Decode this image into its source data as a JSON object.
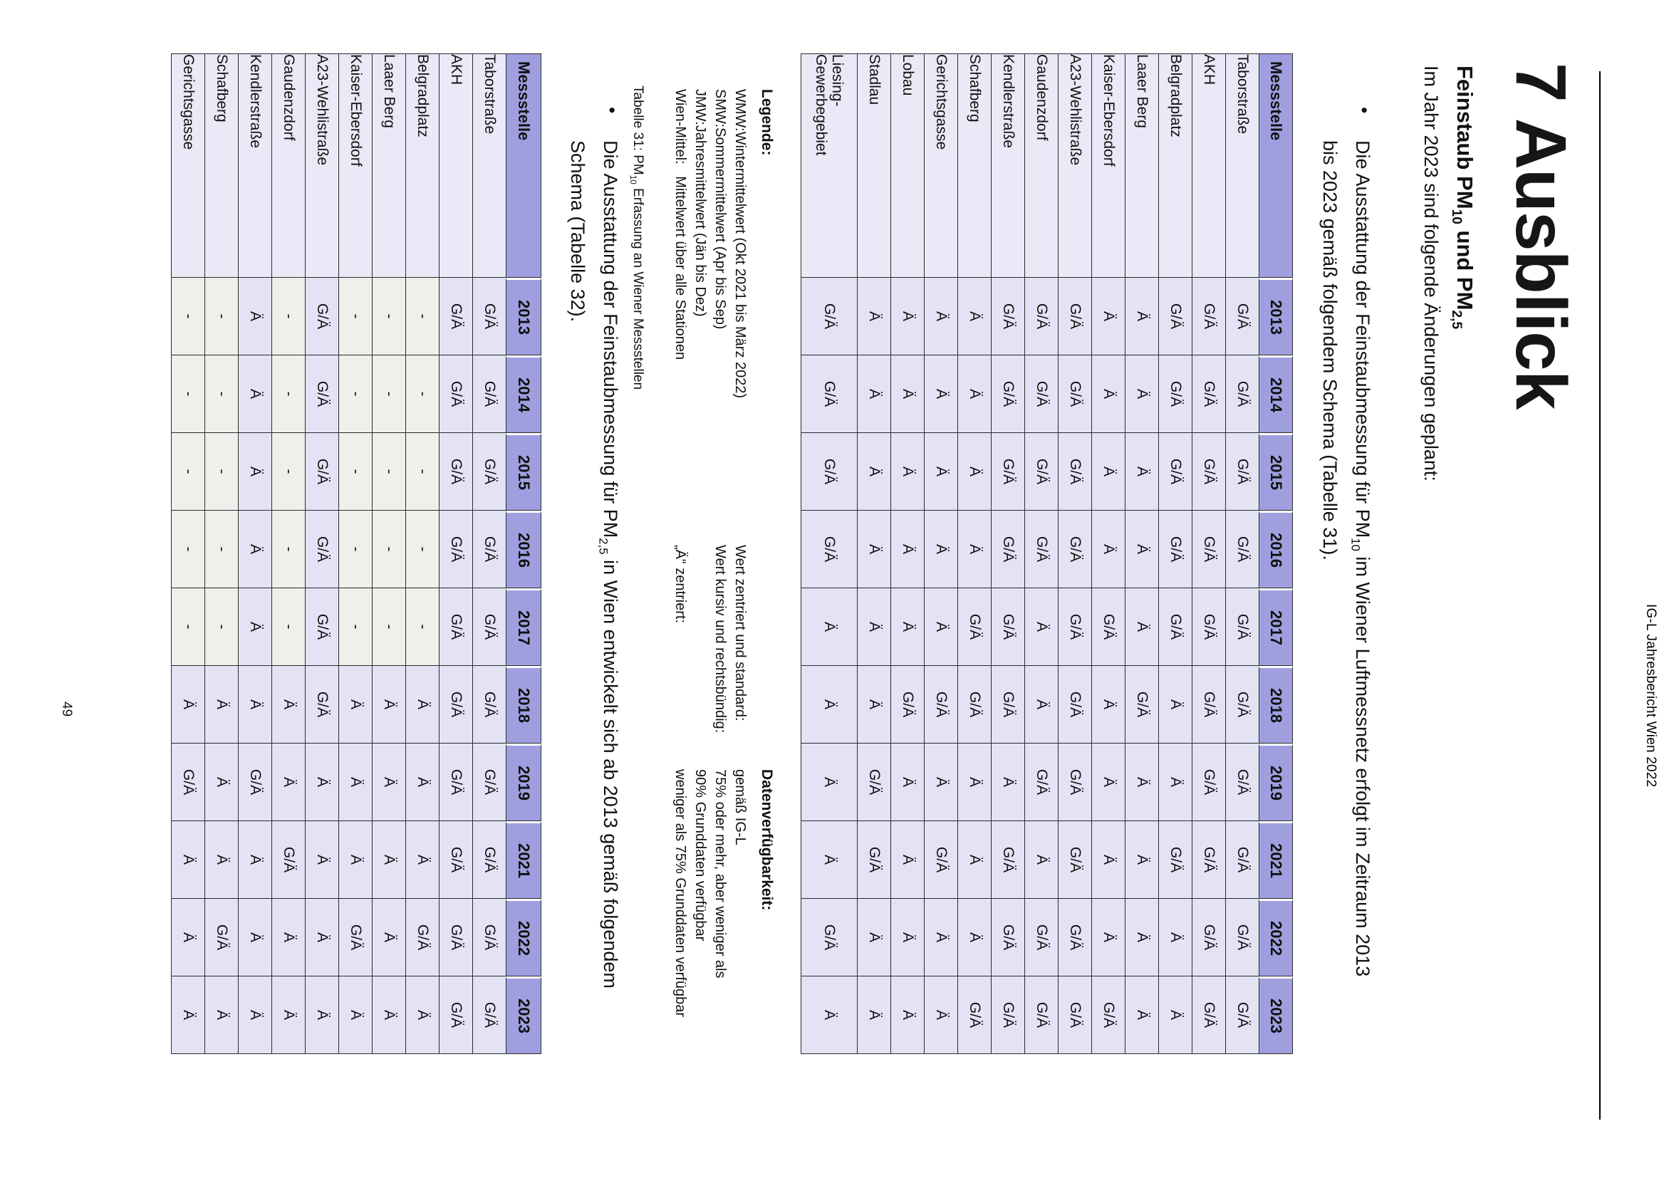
{
  "document": {
    "running_header": "IG-L Jahresbericht Wien 2022",
    "page_number": "49",
    "title": "7 Ausblick",
    "subtitle": {
      "pre": "Feinstaub PM",
      "sub1": "10",
      "mid": " und PM",
      "sub2": "2,5"
    },
    "intro": "Im Jahr 2023 sind folgende Änderungen geplant:",
    "bullet_marker": "•",
    "bullet1": {
      "pre": "Die Ausstattung der Feinstaubmessung für PM",
      "sub": "10",
      "post": " im Wiener Luftmessnetz erfolgt im Zeitraum 2013",
      "line2": "bis 2023 gemäß folgendem Schema (Tabelle 31)."
    },
    "caption31": {
      "pre": "Tabelle 31: PM",
      "sub": "10",
      "post": " Erfassung an Wiener Messstellen"
    },
    "bullet2": {
      "pre": "Die Ausstattung der Feinstaubmessung für PM",
      "sub": "2,5",
      "post": " in Wien entwickelt sich ab 2013 gemäß folgendem",
      "line2": "Schema (Tabelle 32)."
    }
  },
  "legend": {
    "heading_left": "Legende:",
    "heading_right": "Datenverfügbarkeit:",
    "rows": [
      {
        "left": "WMW:Wintermittelwert (Okt 2021 bis März 2022)",
        "mid": "Wert zentriert und standard:",
        "right": "gemäß IG-L"
      },
      {
        "left": "SMW:Sommermittelwert (Apr bis Sep)",
        "mid": "Wert kursiv und rechtsbündig:",
        "right": "75% oder mehr, aber weniger als"
      },
      {
        "left": "JMW:Jahresmittelwert (Jän bis Dez)",
        "mid": "",
        "right": "90% Grunddaten verfügbar"
      },
      {
        "left": "Wien-Mittel:   Mittelwert über alle Stationen",
        "mid": "„Ä“ zentriert:",
        "right": "weniger als 75% Grunddaten verfügbar"
      }
    ]
  },
  "tables": {
    "column_header": "Messstelle",
    "years": [
      "2013",
      "2014",
      "2015",
      "2016",
      "2017",
      "2018",
      "2019",
      "2021",
      "2022",
      "2023"
    ],
    "pm10": {
      "rows": [
        {
          "name": "Taborstraße",
          "values": [
            "G/Ä",
            "G/Ä",
            "G/Ä",
            "G/Ä",
            "G/Ä",
            "G/Ä",
            "G/Ä",
            "G/Ä",
            "G/Ä",
            "G/Ä"
          ]
        },
        {
          "name": "AKH",
          "values": [
            "G/Ä",
            "G/Ä",
            "G/Ä",
            "G/Ä",
            "G/Ä",
            "G/Ä",
            "G/Ä",
            "G/Ä",
            "G/Ä",
            "G/Ä"
          ]
        },
        {
          "name": "Belgradplatz",
          "values": [
            "G/Ä",
            "G/Ä",
            "G/Ä",
            "G/Ä",
            "G/Ä",
            "Ä",
            "Ä",
            "G/Ä",
            "Ä",
            "Ä"
          ]
        },
        {
          "name": "Laaer Berg",
          "values": [
            "Ä",
            "Ä",
            "Ä",
            "Ä",
            "Ä",
            "G/Ä",
            "Ä",
            "Ä",
            "Ä",
            "Ä"
          ]
        },
        {
          "name": "Kaiser-Ebersdorf",
          "values": [
            "Ä",
            "Ä",
            "Ä",
            "Ä",
            "G/Ä",
            "Ä",
            "Ä",
            "Ä",
            "Ä",
            "G/Ä"
          ]
        },
        {
          "name": "A23-Wehlistraße",
          "values": [
            "G/Ä",
            "G/Ä",
            "G/Ä",
            "G/Ä",
            "G/Ä",
            "G/Ä",
            "G/Ä",
            "G/Ä",
            "G/Ä",
            "G/Ä"
          ]
        },
        {
          "name": "Gaudenzdorf",
          "values": [
            "G/Ä",
            "G/Ä",
            "G/Ä",
            "G/Ä",
            "Ä",
            "Ä",
            "G/Ä",
            "Ä",
            "G/Ä",
            "G/Ä"
          ]
        },
        {
          "name": "Kendlerstraße",
          "values": [
            "G/Ä",
            "G/Ä",
            "G/Ä",
            "G/Ä",
            "G/Ä",
            "G/Ä",
            "Ä",
            "G/Ä",
            "G/Ä",
            "G/Ä"
          ]
        },
        {
          "name": "Schafberg",
          "values": [
            "Ä",
            "Ä",
            "Ä",
            "Ä",
            "G/Ä",
            "G/Ä",
            "Ä",
            "Ä",
            "Ä",
            "G/Ä"
          ]
        },
        {
          "name": "Gerichtsgasse",
          "values": [
            "Ä",
            "Ä",
            "Ä",
            "Ä",
            "Ä",
            "G/Ä",
            "Ä",
            "G/Ä",
            "Ä",
            "Ä"
          ]
        },
        {
          "name": "Lobau",
          "values": [
            "Ä",
            "Ä",
            "Ä",
            "Ä",
            "Ä",
            "G/Ä",
            "Ä",
            "Ä",
            "Ä",
            "Ä"
          ]
        },
        {
          "name": "Stadlau",
          "values": [
            "Ä",
            "Ä",
            "Ä",
            "Ä",
            "Ä",
            "Ä",
            "G/Ä",
            "G/Ä",
            "Ä",
            "Ä"
          ]
        },
        {
          "name": "Liesing-\nGewerbegebiet",
          "values": [
            "G/Ä",
            "G/Ä",
            "G/Ä",
            "G/Ä",
            "Ä",
            "Ä",
            "Ä",
            "Ä",
            "G/Ä",
            "Ä"
          ]
        }
      ]
    },
    "pm25": {
      "rows": [
        {
          "name": "Taborstraße",
          "values": [
            "G/Ä",
            "G/Ä",
            "G/Ä",
            "G/Ä",
            "G/Ä",
            "G/Ä",
            "G/Ä",
            "G/Ä",
            "G/Ä",
            "G/Ä"
          ]
        },
        {
          "name": "AKH",
          "values": [
            "G/Ä",
            "G/Ä",
            "G/Ä",
            "G/Ä",
            "G/Ä",
            "G/Ä",
            "G/Ä",
            "G/Ä",
            "G/Ä",
            "G/Ä"
          ]
        },
        {
          "name": "Belgradplatz",
          "values": [
            "-",
            "-",
            "-",
            "-",
            "-",
            "Ä",
            "Ä",
            "Ä",
            "G/Ä",
            "Ä"
          ]
        },
        {
          "name": "Laaer Berg",
          "values": [
            "-",
            "-",
            "-",
            "-",
            "-",
            "Ä",
            "Ä",
            "Ä",
            "Ä",
            "Ä"
          ]
        },
        {
          "name": "Kaiser-Ebersdorf",
          "values": [
            "-",
            "-",
            "-",
            "-",
            "-",
            "Ä",
            "Ä",
            "Ä",
            "G/Ä",
            "Ä"
          ]
        },
        {
          "name": "A23-Wehlistraße",
          "values": [
            "G/Ä",
            "G/Ä",
            "G/Ä",
            "G/Ä",
            "G/Ä",
            "G/Ä",
            "Ä",
            "Ä",
            "Ä",
            "Ä"
          ]
        },
        {
          "name": "Gaudenzdorf",
          "values": [
            "-",
            "-",
            "-",
            "-",
            "-",
            "Ä",
            "Ä",
            "G/Ä",
            "Ä",
            "Ä"
          ]
        },
        {
          "name": "Kendlerstraße",
          "values": [
            "Ä",
            "Ä",
            "Ä",
            "Ä",
            "Ä",
            "Ä",
            "G/Ä",
            "Ä",
            "Ä",
            "Ä"
          ]
        },
        {
          "name": "Schafberg",
          "values": [
            "-",
            "-",
            "-",
            "-",
            "-",
            "Ä",
            "Ä",
            "Ä",
            "G/Ä",
            "Ä"
          ]
        },
        {
          "name": "Gerichtsgasse",
          "values": [
            "-",
            "-",
            "-",
            "-",
            "-",
            "Ä",
            "G/Ä",
            "Ä",
            "Ä",
            "Ä"
          ]
        }
      ]
    }
  },
  "colors": {
    "header_fill": "#9f9fe0",
    "cell_fill": "#e3e3f5",
    "label_fill": "#e9e9f7",
    "empty_fill": "#eff0eb",
    "grid": "#2b2b2b"
  }
}
